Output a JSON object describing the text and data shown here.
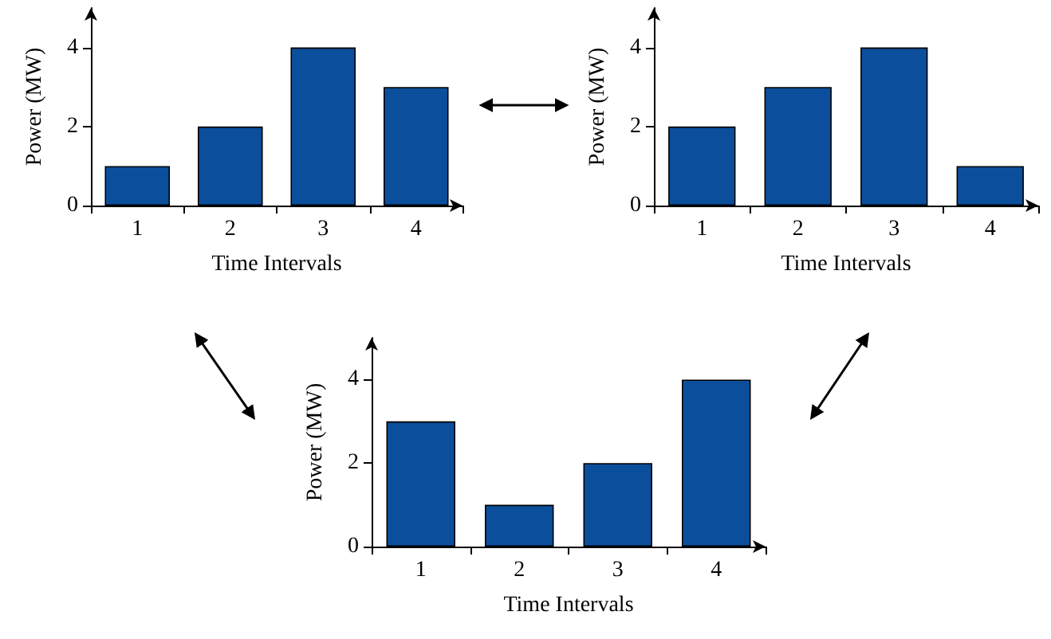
{
  "chart_data": [
    {
      "type": "bar",
      "xlabel": "Time Intervals",
      "ylabel": "Power (MW)",
      "categories": [
        "1",
        "2",
        "3",
        "4"
      ],
      "values": [
        1,
        2,
        4,
        3
      ],
      "color": "#0b4f9c",
      "ylim": [
        0,
        5
      ],
      "yticks": [
        0,
        2,
        4
      ],
      "grid": false
    },
    {
      "type": "bar",
      "xlabel": "Time Intervals",
      "ylabel": "Power (MW)",
      "categories": [
        "1",
        "2",
        "3",
        "4"
      ],
      "values": [
        2,
        3,
        4,
        1
      ],
      "color": "#0b4f9c",
      "ylim": [
        0,
        5
      ],
      "yticks": [
        0,
        2,
        4
      ],
      "grid": false
    },
    {
      "type": "bar",
      "xlabel": "Time Intervals",
      "ylabel": "Power (MW)",
      "categories": [
        "1",
        "2",
        "3",
        "4"
      ],
      "values": [
        3,
        1,
        2,
        4
      ],
      "color": "#0b4f9c",
      "ylim": [
        0,
        5
      ],
      "yticks": [
        0,
        2,
        4
      ],
      "grid": false
    }
  ]
}
